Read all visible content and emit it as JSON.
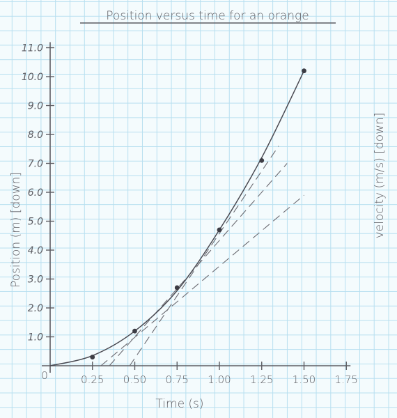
{
  "chart_data": {
    "type": "scatter",
    "title": "Position versus time for an orange",
    "xlabel": "Time (s)",
    "ylabel": "Position (m) [down]",
    "y2label": "velocity (m/s) [down]",
    "origin_label": "0",
    "xlim": [
      0,
      1.75
    ],
    "ylim": [
      0,
      11.0
    ],
    "x_ticks": [
      "0.25",
      "0.50",
      "0.75",
      "1.00",
      "1.25",
      "1.50",
      "1.75"
    ],
    "y_ticks": [
      "1.0",
      "2.0",
      "3.0",
      "4.0",
      "5.0",
      "6.0",
      "7.0",
      "8.0",
      "9.0",
      "10.0",
      "11.0"
    ],
    "grid": true,
    "series": [
      {
        "points": [
          {
            "x": 0.25,
            "y": 0.3
          },
          {
            "x": 0.5,
            "y": 1.2
          },
          {
            "x": 0.75,
            "y": 2.7
          },
          {
            "x": 1.0,
            "y": 4.7
          },
          {
            "x": 1.25,
            "y": 7.1
          },
          {
            "x": 1.5,
            "y": 10.2
          }
        ]
      }
    ],
    "best_fit_curve": [
      {
        "x": 0.0,
        "y": 0.0
      },
      {
        "x": 0.25,
        "y": 0.35
      },
      {
        "x": 0.5,
        "y": 1.2
      },
      {
        "x": 0.75,
        "y": 2.6
      },
      {
        "x": 1.0,
        "y": 4.7
      },
      {
        "x": 1.25,
        "y": 7.2
      },
      {
        "x": 1.5,
        "y": 10.2
      }
    ],
    "tangent_lines": [
      {
        "x1": 0.3,
        "y1": 0.0,
        "x2": 1.5,
        "y2": 5.9
      },
      {
        "x1": 0.35,
        "y1": 0.0,
        "x2": 1.4,
        "y2": 7.0
      },
      {
        "x1": 0.47,
        "y1": 0.0,
        "x2": 1.35,
        "y2": 7.6
      }
    ],
    "colors": {
      "ink": "#5d5d63",
      "points": "#3d3d45",
      "grid": "#b7dff0",
      "background": "#f4fbfd"
    }
  }
}
